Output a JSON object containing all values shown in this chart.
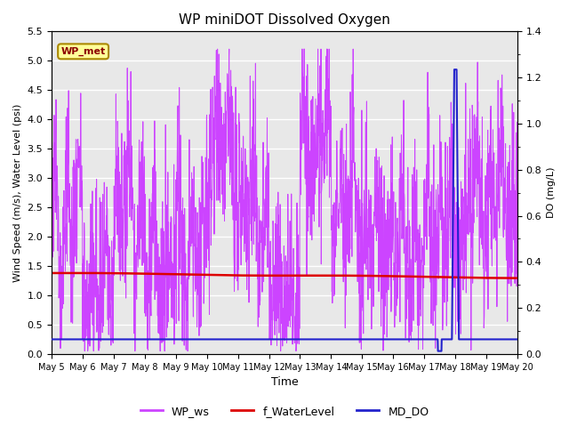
{
  "title": "WP miniDOT Dissolved Oxygen",
  "xlabel": "Time",
  "ylabel_left": "Wind Speed (m/s), Water Level (psi)",
  "ylabel_right": "DO (mg/L)",
  "ylim_left": [
    0.0,
    5.5
  ],
  "ylim_right": [
    0.0,
    1.4
  ],
  "yticks_left": [
    0.0,
    0.5,
    1.0,
    1.5,
    2.0,
    2.5,
    3.0,
    3.5,
    4.0,
    4.5,
    5.0,
    5.5
  ],
  "yticks_right": [
    0.0,
    0.2,
    0.4,
    0.6,
    0.8,
    1.0,
    1.2,
    1.4
  ],
  "xtick_labels": [
    "May 5",
    "May 6",
    "May 7",
    "May 8",
    "May 9",
    "May 10",
    "May 11",
    "May 12",
    "May 13",
    "May 14",
    "May 15",
    "May 16",
    "May 17",
    "May 18",
    "May 19",
    "May 20"
  ],
  "wp_ws_color": "#CC44FF",
  "f_water_level_color": "#DD0000",
  "md_do_color": "#2222CC",
  "background_color": "#E8E8E8",
  "legend_label_ws": "WP_ws",
  "legend_label_wl": "f_WaterLevel",
  "legend_label_do": "MD_DO",
  "annotation_text": "WP_met",
  "annotation_bg": "#FFFF99",
  "annotation_border": "#AA8800"
}
